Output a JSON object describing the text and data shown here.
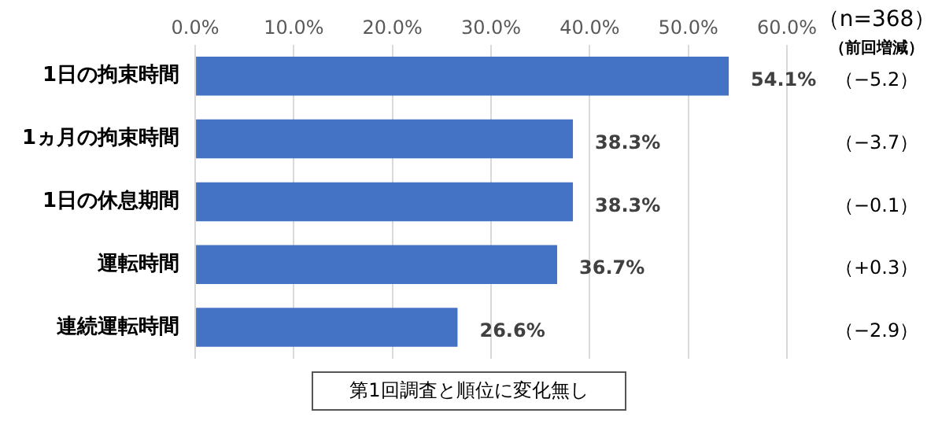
{
  "chart_data": {
    "type": "bar",
    "orientation": "horizontal",
    "categories": [
      "1日の拘束時間",
      "1ヵ月の拘束時間",
      "1日の休息期間",
      "運転時間",
      "連続運転時間"
    ],
    "values": [
      54.1,
      38.3,
      38.3,
      36.7,
      26.6
    ],
    "value_labels": [
      "54.1%",
      "38.3%",
      "38.3%",
      "36.7%",
      "26.6%"
    ],
    "color": "#4472c4",
    "xlim": [
      0,
      60
    ],
    "xticks": [
      {
        "value": 0,
        "label": "0.0%"
      },
      {
        "value": 10,
        "label": "10.0%"
      },
      {
        "value": 20,
        "label": "20.0%"
      },
      {
        "value": 30,
        "label": "30.0%"
      },
      {
        "value": 40,
        "label": "40.0%"
      },
      {
        "value": 50,
        "label": "50.0%"
      },
      {
        "value": 60,
        "label": "60.0%"
      }
    ],
    "grid": "x",
    "legend": false,
    "annotations": [
      "（n=368）",
      "（前回増減）",
      "（−5.2）",
      "（−3.7）",
      "（−0.1）",
      "（+0.3）",
      "（−2.9）",
      "第1回調査と順位に変化無し"
    ]
  }
}
